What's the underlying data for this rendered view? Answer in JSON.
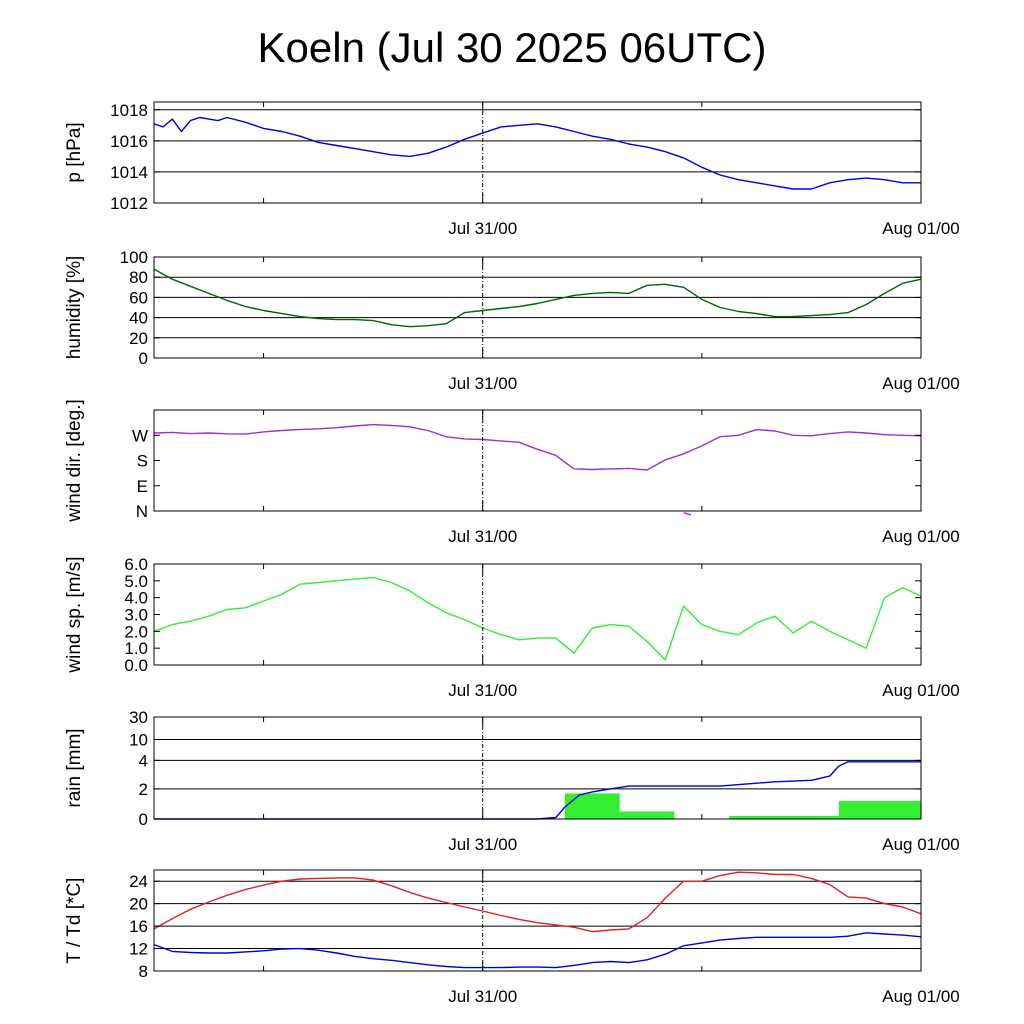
{
  "chart_data": [
    {
      "type": "line",
      "title": "Koeln (Jul 30 2025 06UTC)",
      "ylabel": "p [hPa]",
      "ylim": [
        1012,
        1018.5
      ],
      "yticks": [
        "1012",
        "1014",
        "1016",
        "1018"
      ],
      "ygrid": [
        1012,
        1014,
        1016,
        1018
      ],
      "xticks": [
        "Jul 31/00",
        "Aug 01/00"
      ],
      "grid": "horizontal",
      "series": [
        {
          "color": "#0000dd",
          "x": [
            0,
            0.5,
            1,
            1.5,
            2,
            2.5,
            3,
            3.5,
            4,
            5,
            6,
            7,
            8,
            9,
            10,
            11,
            12,
            13,
            14,
            15,
            16,
            17,
            18,
            19,
            20,
            21,
            22,
            23,
            24,
            25,
            26,
            27,
            28,
            29,
            30,
            31,
            32,
            33,
            34,
            35,
            36,
            37,
            38,
            39,
            40,
            41,
            42
          ],
          "y": [
            1017.1,
            1016.9,
            1017.4,
            1016.6,
            1017.3,
            1017.5,
            1017.4,
            1017.3,
            1017.5,
            1017.2,
            1016.8,
            1016.6,
            1016.3,
            1015.9,
            1015.7,
            1015.5,
            1015.3,
            1015.1,
            1015.0,
            1015.2,
            1015.6,
            1016.1,
            1016.5,
            1016.9,
            1017.0,
            1017.1,
            1016.9,
            1016.6,
            1016.3,
            1016.1,
            1015.8,
            1015.6,
            1015.3,
            1014.9,
            1014.3,
            1013.8,
            1013.5,
            1013.3,
            1013.1,
            1012.9,
            1012.9,
            1013.3,
            1013.5,
            1013.6,
            1013.5,
            1013.3,
            1013.3
          ]
        }
      ]
    },
    {
      "type": "line",
      "ylabel": "humidity [%]",
      "ylim": [
        0,
        100
      ],
      "yticks": [
        "0",
        "20",
        "40",
        "60",
        "80",
        "100"
      ],
      "ygrid": [
        20,
        40,
        60,
        80
      ],
      "xticks": [
        "Jul 31/00",
        "Aug 01/00"
      ],
      "grid": "horizontal",
      "series": [
        {
          "color": "#006400",
          "x": [
            0,
            1,
            2,
            3,
            4,
            5,
            6,
            7,
            8,
            9,
            10,
            11,
            12,
            13,
            14,
            15,
            16,
            17,
            18,
            19,
            20,
            21,
            22,
            23,
            24,
            25,
            26,
            27,
            28,
            29,
            30,
            31,
            32,
            33,
            34,
            35,
            36,
            37,
            38,
            39,
            40,
            41,
            42
          ],
          "y": [
            88,
            78,
            71,
            64,
            57,
            51,
            47,
            44,
            41,
            39,
            38,
            38,
            37,
            33,
            31,
            32,
            34,
            45,
            47,
            49,
            51,
            54,
            58,
            62,
            64,
            65,
            64,
            72,
            73,
            70,
            58,
            50,
            46,
            44,
            41,
            41,
            42,
            43,
            45,
            53,
            64,
            74,
            78
          ]
        }
      ]
    },
    {
      "type": "scatter",
      "ylabel": "wind dir. [deg.]",
      "ylim": [
        0,
        360
      ],
      "yticks": [
        "N",
        "E",
        "S",
        "W"
      ],
      "ytick_values": [
        0,
        90,
        180,
        270
      ],
      "xticks": [
        "Jul 31/00",
        "Aug 01/00"
      ],
      "grid": "none",
      "series": [
        {
          "color": "#9932cc",
          "x": [
            0,
            1,
            2,
            3,
            4,
            5,
            6,
            7,
            8,
            9,
            10,
            11,
            12,
            13,
            14,
            15,
            16,
            17,
            18,
            19,
            20,
            21,
            22,
            23,
            24,
            25,
            26,
            27,
            28,
            29,
            30,
            31,
            32,
            33,
            34,
            35,
            36,
            37,
            38,
            39,
            40,
            41,
            42
          ],
          "y": [
            278,
            280,
            276,
            278,
            275,
            274,
            282,
            287,
            291,
            293,
            297,
            303,
            308,
            305,
            300,
            287,
            265,
            257,
            255,
            250,
            245,
            220,
            198,
            150,
            148,
            150,
            152,
            146,
            182,
            204,
            232,
            265,
            270,
            290,
            285,
            270,
            268,
            276,
            282,
            278,
            272,
            270,
            268
          ]
        },
        {
          "color": "#9932cc",
          "x": [
            29,
            29.4
          ],
          "y": [
            -6,
            -14
          ]
        }
      ]
    },
    {
      "type": "line",
      "ylabel": "wind sp. [m/s]",
      "ylim": [
        0,
        6
      ],
      "yticks": [
        "0.0",
        "1.0",
        "2.0",
        "3.0",
        "4.0",
        "5.0",
        "6.0"
      ],
      "xticks": [
        "Jul 31/00",
        "Aug 01/00"
      ],
      "grid": "none",
      "series": [
        {
          "color": "#33ee33",
          "x": [
            0,
            1,
            2,
            3,
            4,
            5,
            6,
            7,
            8,
            9,
            10,
            11,
            12,
            13,
            14,
            15,
            16,
            17,
            18,
            19,
            20,
            21,
            22,
            23,
            24,
            25,
            26,
            27,
            28,
            29,
            30,
            31,
            32,
            33,
            34,
            35,
            36,
            37,
            38,
            39,
            40,
            41,
            42
          ],
          "y": [
            2.0,
            2.4,
            2.6,
            2.9,
            3.3,
            3.4,
            3.8,
            4.2,
            4.8,
            4.9,
            5.0,
            5.1,
            5.2,
            4.9,
            4.4,
            3.7,
            3.1,
            2.7,
            2.2,
            1.8,
            1.5,
            1.6,
            1.6,
            0.7,
            2.2,
            2.4,
            2.3,
            1.4,
            0.3,
            3.5,
            2.4,
            2.0,
            1.8,
            2.5,
            2.9,
            1.9,
            2.6,
            2.0,
            1.5,
            1.0,
            4.0,
            4.6,
            4.1
          ]
        }
      ]
    },
    {
      "type": "bar",
      "ylabel": "rain [mm]",
      "yticks": [
        "0",
        "2",
        "4",
        "10",
        "30"
      ],
      "ytick_values": [
        0,
        2,
        4,
        10,
        30
      ],
      "xticks": [
        "Jul 31/00",
        "Aug 01/00"
      ],
      "grid": "horizontal",
      "bars": [
        {
          "color": "#33ee33",
          "x0": 22.5,
          "x1": 25.5,
          "value": 1.7
        },
        {
          "color": "#33ee33",
          "x0": 25.5,
          "x1": 28.5,
          "value": 0.5
        },
        {
          "color": "#33ee33",
          "x0": 31.5,
          "x1": 37.5,
          "value": 0.2
        },
        {
          "color": "#33ee33",
          "x0": 37.5,
          "x1": 42,
          "value": 1.2
        }
      ],
      "series": [
        {
          "color": "#0000dd",
          "x": [
            0,
            18,
            21,
            22,
            22.5,
            23.3,
            24,
            25,
            26,
            28,
            31,
            33,
            34,
            36,
            37,
            37.5,
            38,
            42
          ],
          "y": [
            0,
            0,
            0,
            0.1,
            0.8,
            1.6,
            1.8,
            2.0,
            2.2,
            2.2,
            2.2,
            2.4,
            2.5,
            2.6,
            2.9,
            3.6,
            3.9,
            3.9
          ]
        }
      ]
    },
    {
      "type": "line",
      "ylabel": "T / Td [*C]",
      "ylim": [
        8,
        26
      ],
      "yticks": [
        "8",
        "12",
        "16",
        "20",
        "24"
      ],
      "ygrid": [
        12,
        16,
        20,
        24
      ],
      "xticks": [
        "Jul 31/00",
        "Aug 01/00"
      ],
      "grid": "horizontal",
      "series": [
        {
          "color": "#dd2222",
          "x": [
            0,
            1,
            2,
            3,
            4,
            5,
            6,
            7,
            8,
            9,
            10,
            11,
            12,
            13,
            14,
            15,
            16,
            17,
            18,
            19,
            20,
            21,
            22,
            23,
            24,
            25,
            26,
            27,
            28,
            29,
            30,
            31,
            32,
            33,
            34,
            35,
            36,
            37,
            38,
            39,
            40,
            41,
            42
          ],
          "y": [
            15.5,
            17.3,
            19.0,
            20.3,
            21.5,
            22.5,
            23.3,
            24.0,
            24.4,
            24.5,
            24.6,
            24.6,
            24.2,
            23.2,
            22.0,
            21.0,
            20.2,
            19.4,
            18.7,
            17.9,
            17.2,
            16.6,
            16.2,
            15.8,
            15.0,
            15.3,
            15.5,
            17.5,
            21.0,
            24.0,
            24.0,
            25.0,
            25.6,
            25.5,
            25.2,
            25.2,
            24.5,
            23.4,
            21.2,
            21.0,
            20.0,
            19.4,
            18.2
          ]
        },
        {
          "color": "#0000dd",
          "x": [
            0,
            1,
            2,
            3,
            4,
            5,
            6,
            7,
            8,
            9,
            10,
            11,
            12,
            13,
            14,
            15,
            16,
            17,
            18,
            19,
            20,
            21,
            22,
            23,
            24,
            25,
            26,
            27,
            28,
            29,
            30,
            31,
            32,
            33,
            34,
            35,
            36,
            37,
            38,
            39,
            40,
            41,
            42
          ],
          "y": [
            12.7,
            11.5,
            11.3,
            11.2,
            11.2,
            11.4,
            11.6,
            11.9,
            12.0,
            11.7,
            11.2,
            10.6,
            10.2,
            9.9,
            9.5,
            9.1,
            8.8,
            8.6,
            8.6,
            8.6,
            8.7,
            8.7,
            8.6,
            9.0,
            9.5,
            9.7,
            9.5,
            10.0,
            11.0,
            12.5,
            13.0,
            13.5,
            13.8,
            14.0,
            14.0,
            14.0,
            14.0,
            14.0,
            14.2,
            14.8,
            14.6,
            14.4,
            14.1
          ]
        }
      ]
    }
  ]
}
